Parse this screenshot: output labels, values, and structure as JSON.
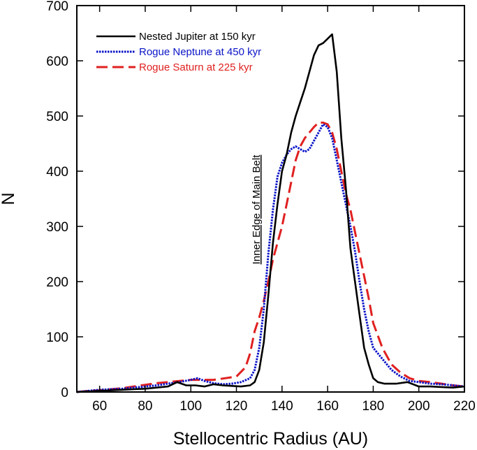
{
  "chart_data": {
    "type": "line",
    "title": "",
    "xlabel": "Stellocentric Radius (AU)",
    "ylabel": "N",
    "xlim": [
      50,
      220
    ],
    "ylim": [
      0,
      700
    ],
    "xticks": [
      60,
      80,
      100,
      120,
      140,
      160,
      180,
      200,
      220
    ],
    "yticks": [
      0,
      100,
      200,
      300,
      400,
      500,
      600,
      700
    ],
    "grid": false,
    "legend_position": "top-left",
    "annotation": "Inner Edge of Main Belt",
    "series": [
      {
        "name": "Nested Jupiter at 150 kyr",
        "color": "#000000",
        "dash": "solid",
        "x": [
          50,
          55,
          60,
          65,
          70,
          75,
          80,
          85,
          90,
          94,
          98,
          102,
          106,
          110,
          114,
          118,
          122,
          126,
          128,
          130,
          132,
          134,
          136,
          138,
          140,
          142,
          144,
          146,
          148,
          150,
          152,
          154,
          156,
          158,
          160,
          162,
          164,
          166,
          168,
          170,
          172,
          174,
          176,
          178,
          180,
          182,
          185,
          190,
          195,
          200,
          205,
          210,
          215,
          220
        ],
        "y": [
          0,
          1,
          2,
          3,
          4,
          5,
          6,
          8,
          10,
          18,
          12,
          12,
          10,
          14,
          12,
          11,
          10,
          12,
          18,
          40,
          90,
          175,
          270,
          340,
          400,
          430,
          470,
          500,
          525,
          550,
          580,
          610,
          628,
          632,
          640,
          648,
          580,
          460,
          370,
          260,
          200,
          140,
          80,
          50,
          25,
          18,
          15,
          15,
          18,
          10,
          10,
          9,
          8,
          10
        ]
      },
      {
        "name": "Rogue Neptune at 450 kyr",
        "color": "#0a14c8",
        "dash": "dotted",
        "x": [
          50,
          55,
          60,
          65,
          70,
          75,
          80,
          85,
          90,
          95,
          100,
          103,
          106,
          110,
          114,
          118,
          122,
          126,
          128,
          130,
          132,
          134,
          136,
          138,
          140,
          142,
          144,
          146,
          148,
          150,
          152,
          154,
          156,
          158,
          160,
          162,
          164,
          166,
          168,
          170,
          172,
          174,
          176,
          178,
          180,
          184,
          188,
          192,
          196,
          200,
          205,
          210,
          215,
          220
        ],
        "y": [
          0,
          2,
          4,
          5,
          6,
          8,
          10,
          12,
          15,
          18,
          22,
          25,
          20,
          16,
          14,
          15,
          18,
          25,
          40,
          80,
          150,
          250,
          330,
          390,
          415,
          430,
          440,
          445,
          440,
          435,
          440,
          455,
          470,
          485,
          480,
          460,
          420,
          380,
          340,
          300,
          255,
          200,
          150,
          110,
          80,
          60,
          40,
          28,
          20,
          18,
          15,
          14,
          12,
          10
        ]
      },
      {
        "name": "Rogue Saturn at 225 kyr",
        "color": "#e02020",
        "dash": "dashed",
        "x": [
          50,
          55,
          60,
          65,
          70,
          75,
          80,
          85,
          90,
          95,
          100,
          105,
          110,
          115,
          120,
          124,
          126,
          128,
          130,
          132,
          134,
          136,
          138,
          140,
          142,
          144,
          146,
          148,
          150,
          152,
          154,
          156,
          158,
          160,
          162,
          164,
          166,
          168,
          170,
          172,
          174,
          176,
          178,
          180,
          184,
          188,
          192,
          196,
          200,
          205,
          210,
          215,
          220
        ],
        "y": [
          0,
          2,
          3,
          5,
          7,
          10,
          13,
          16,
          18,
          20,
          22,
          22,
          22,
          25,
          28,
          45,
          70,
          110,
          135,
          165,
          200,
          240,
          270,
          300,
          340,
          380,
          420,
          445,
          460,
          470,
          480,
          488,
          488,
          485,
          470,
          440,
          400,
          360,
          330,
          290,
          250,
          210,
          170,
          125,
          80,
          50,
          35,
          25,
          20,
          18,
          15,
          12,
          10
        ]
      }
    ]
  }
}
